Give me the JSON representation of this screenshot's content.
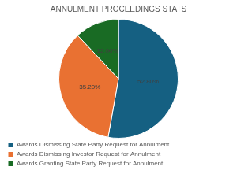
{
  "chart_data": {
    "type": "pie",
    "title": "ANNULMENT PROCEEDINGS STATS",
    "categories": [
      "Awards Dismissing State Party Request for Annulment",
      "Awards Dismissing Investor Request for Annulment",
      "Awards Granting State Party Request for Annulment"
    ],
    "values": [
      52.8,
      35.2,
      12
    ],
    "value_labels": [
      "52.80%",
      "35.20%",
      "12.00%"
    ],
    "colors": [
      "#156082",
      "#e97132",
      "#196b24"
    ],
    "data_labels": true,
    "legend": "bottom"
  }
}
